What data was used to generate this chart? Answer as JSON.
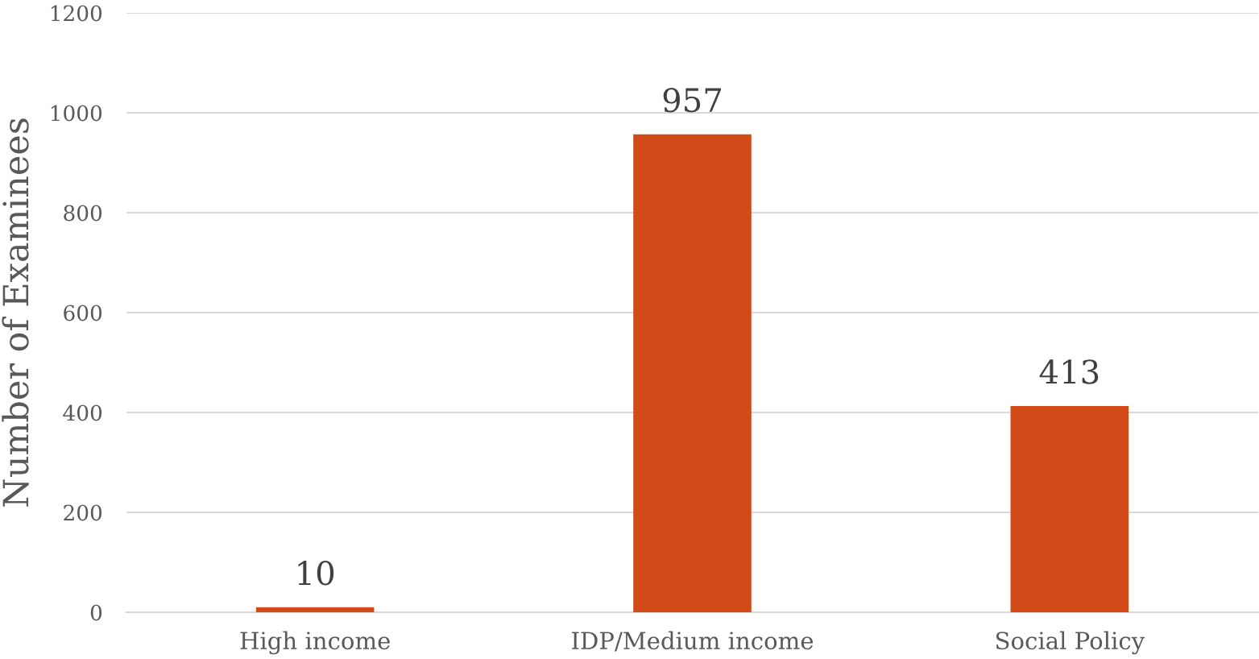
{
  "chart_data": {
    "type": "bar",
    "categories": [
      "High income",
      "IDP/Medium income",
      "Social Policy"
    ],
    "values": [
      10,
      957,
      413
    ],
    "color": "#d14a17",
    "ylabel": "Number of Examinees",
    "ylim": [
      0,
      1200
    ],
    "yticks": [
      0,
      200,
      400,
      600,
      800,
      1000,
      1200
    ],
    "grid": "y",
    "data_labels": true
  }
}
